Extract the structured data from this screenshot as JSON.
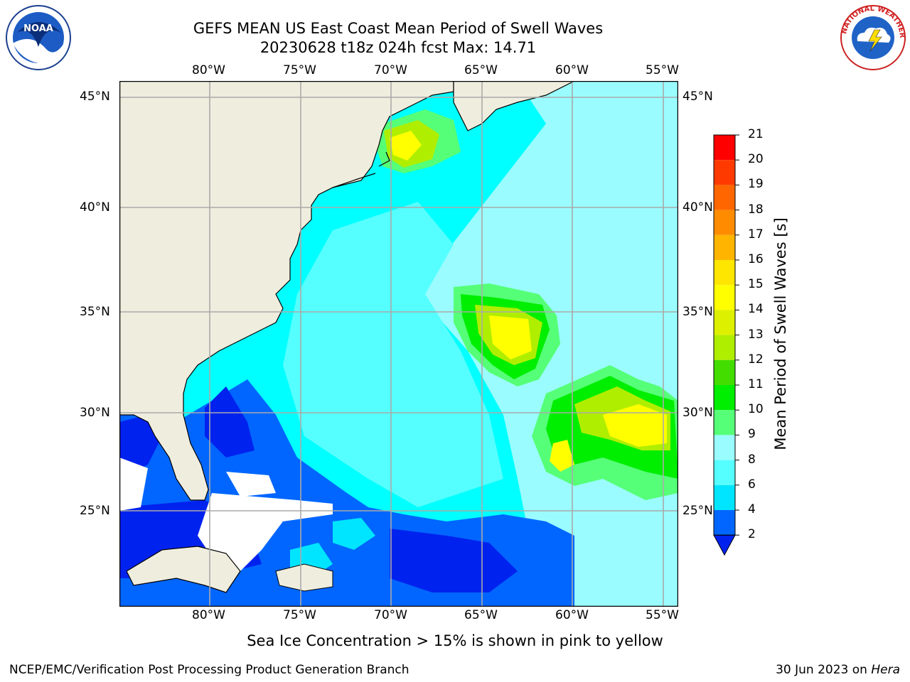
{
  "header": {
    "title_line1": "GEFS MEAN US East Coast Mean Period of Swell Waves",
    "title_line2": "20230628 t18z 024h fcst   Max: 14.71"
  },
  "logos": {
    "left": "noaa-logo",
    "left_text": "NOAA",
    "right": "national-weather-service-logo",
    "right_text": "NATIONAL WEATHER SERVICE"
  },
  "axes": {
    "lon_labels": [
      "80°W",
      "75°W",
      "70°W",
      "65°W",
      "60°W",
      "55°W"
    ],
    "lat_labels": [
      "45°N",
      "40°N",
      "35°N",
      "30°N",
      "25°N"
    ]
  },
  "colorbar": {
    "title": "Mean Period of Swell Waves [s]",
    "levels": [
      "21",
      "20",
      "19",
      "18",
      "17",
      "16",
      "15",
      "14",
      "13",
      "12",
      "11",
      "10",
      "9",
      "8",
      "6",
      "4",
      "2"
    ],
    "colors": {
      "2-4": "#0066ff",
      "4-6": "#00e5ff",
      "6-8": "#55ffff",
      "8-9": "#9afcff",
      "9-10": "#55ff77",
      "10-11": "#00ee00",
      "11-12": "#44dd00",
      "12-13": "#b0ee00",
      "13-14": "#ddf000",
      "14-15": "#ffff00",
      "15-16": "#ffe600",
      "16-17": "#ffb400",
      "17-18": "#ff8c00",
      "18-19": "#ff6600",
      "19-20": "#ff3a00",
      "20-21": "#ff0000",
      "under": "#0022ee"
    }
  },
  "map": {
    "land_color": "#efedde",
    "ocean_base": "#00ffff",
    "grid_color": "#aaaaaa"
  },
  "caption": "Sea Ice Concentration > 15% is shown in pink to yellow",
  "footer": {
    "left": "NCEP/EMC/Verification Post Processing Product Generation Branch",
    "right_date": "30 Jun 2023 on ",
    "right_machine": "Hera"
  }
}
